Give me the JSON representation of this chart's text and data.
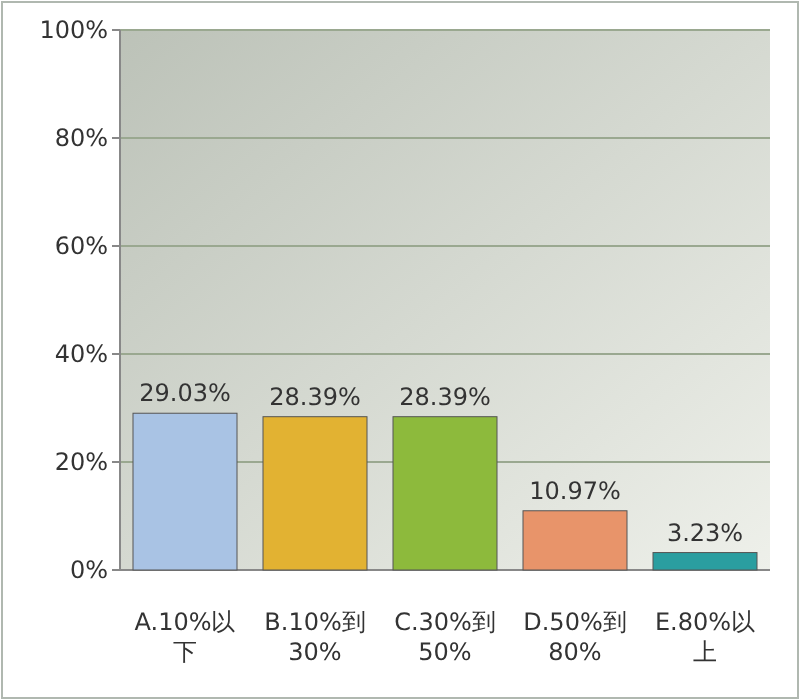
{
  "chart_data": {
    "type": "bar",
    "categories": [
      "A.10%以下",
      "B.10%到30%",
      "C.30%到50%",
      "D.50%到80%",
      "E.80%以上"
    ],
    "values": [
      29.03,
      28.39,
      28.39,
      10.97,
      3.23
    ],
    "value_labels": [
      "29.03%",
      "28.39%",
      "28.39%",
      "10.97%",
      "3.23%"
    ],
    "colors": [
      "#a9c3e4",
      "#e2b232",
      "#8dba3c",
      "#e8946a",
      "#2a9ea0"
    ],
    "ylim": [
      0,
      100
    ],
    "yticks": [
      {
        "value": 0,
        "label": "0%"
      },
      {
        "value": 20,
        "label": "20%"
      },
      {
        "value": 40,
        "label": "40%"
      },
      {
        "value": 60,
        "label": "60%"
      },
      {
        "value": 80,
        "label": "80%"
      },
      {
        "value": 100,
        "label": "100%"
      }
    ],
    "grid": "y"
  }
}
